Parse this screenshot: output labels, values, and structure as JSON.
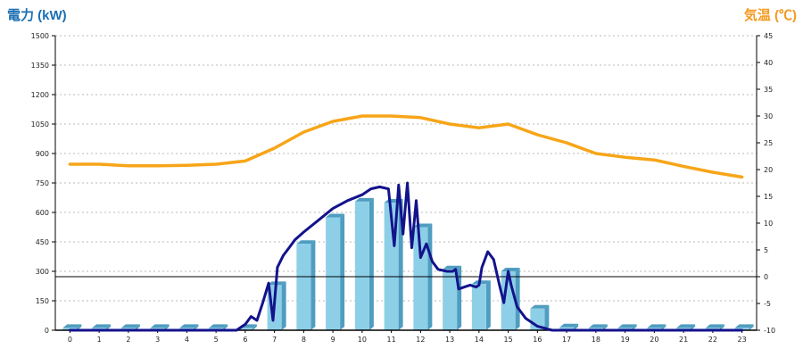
{
  "chart_data": {
    "type": "bar",
    "left_axis_title": "電力 (kW)",
    "right_axis_title": "気温 (℃)",
    "left_axis_color": "#1a6fb3",
    "right_axis_color": "#f39a1e",
    "ylim": [
      0,
      1500
    ],
    "y2lim": [
      -10,
      45
    ],
    "yticks": [
      "0",
      "150",
      "300",
      "450",
      "600",
      "750",
      "900",
      "1050",
      "1200",
      "1350",
      "1500"
    ],
    "y2ticks": [
      "-10",
      "-5",
      "0",
      "5",
      "10",
      "15",
      "20",
      "25",
      "30",
      "35",
      "40",
      "45"
    ],
    "categories": [
      "0",
      "1",
      "2",
      "3",
      "4",
      "5",
      "6",
      "7",
      "8",
      "9",
      "10",
      "11",
      "12",
      "13",
      "14",
      "15",
      "16",
      "17",
      "18",
      "19",
      "20",
      "21",
      "22",
      "23"
    ],
    "grid": true,
    "series": [
      {
        "kind": "bar",
        "axis": "left",
        "color": "#8ecfe8",
        "values": [
          12,
          12,
          12,
          12,
          12,
          12,
          12,
          230,
          440,
          575,
          655,
          650,
          525,
          310,
          235,
          300,
          110,
          15,
          12,
          12,
          12,
          12,
          12,
          12
        ]
      },
      {
        "kind": "line",
        "axis": "left",
        "color": "#13138c",
        "points": [
          [
            0,
            0
          ],
          [
            1,
            0
          ],
          [
            2,
            0
          ],
          [
            3,
            0
          ],
          [
            4,
            0
          ],
          [
            5,
            0
          ],
          [
            5.7,
            0
          ],
          [
            6,
            30
          ],
          [
            6.2,
            70
          ],
          [
            6.4,
            50
          ],
          [
            6.6,
            140
          ],
          [
            6.8,
            240
          ],
          [
            6.95,
            50
          ],
          [
            7.1,
            320
          ],
          [
            7.3,
            380
          ],
          [
            7.5,
            420
          ],
          [
            7.7,
            460
          ],
          [
            8,
            500
          ],
          [
            8.5,
            560
          ],
          [
            9,
            620
          ],
          [
            9.5,
            660
          ],
          [
            10,
            690
          ],
          [
            10.3,
            720
          ],
          [
            10.6,
            730
          ],
          [
            10.9,
            720
          ],
          [
            11.1,
            430
          ],
          [
            11.25,
            740
          ],
          [
            11.4,
            490
          ],
          [
            11.55,
            750
          ],
          [
            11.7,
            420
          ],
          [
            11.85,
            660
          ],
          [
            12,
            370
          ],
          [
            12.2,
            440
          ],
          [
            12.4,
            350
          ],
          [
            12.6,
            310
          ],
          [
            12.9,
            300
          ],
          [
            13.1,
            300
          ],
          [
            13.2,
            310
          ],
          [
            13.3,
            210
          ],
          [
            13.5,
            220
          ],
          [
            13.7,
            230
          ],
          [
            13.9,
            220
          ],
          [
            14,
            230
          ],
          [
            14.1,
            320
          ],
          [
            14.3,
            400
          ],
          [
            14.5,
            360
          ],
          [
            14.7,
            230
          ],
          [
            14.85,
            140
          ],
          [
            15,
            300
          ],
          [
            15.1,
            230
          ],
          [
            15.3,
            120
          ],
          [
            15.6,
            60
          ],
          [
            16,
            20
          ],
          [
            16.5,
            0
          ],
          [
            23,
            0
          ]
        ]
      },
      {
        "kind": "line",
        "axis": "right",
        "color": "#f7a518",
        "values": [
          21,
          21,
          20.7,
          20.7,
          20.8,
          21,
          21.6,
          24,
          27,
          29,
          30,
          30,
          29.7,
          28.5,
          27.8,
          28.5,
          26.5,
          25,
          23,
          22.3,
          21.8,
          20.6,
          19.5,
          18.6
        ]
      }
    ]
  }
}
